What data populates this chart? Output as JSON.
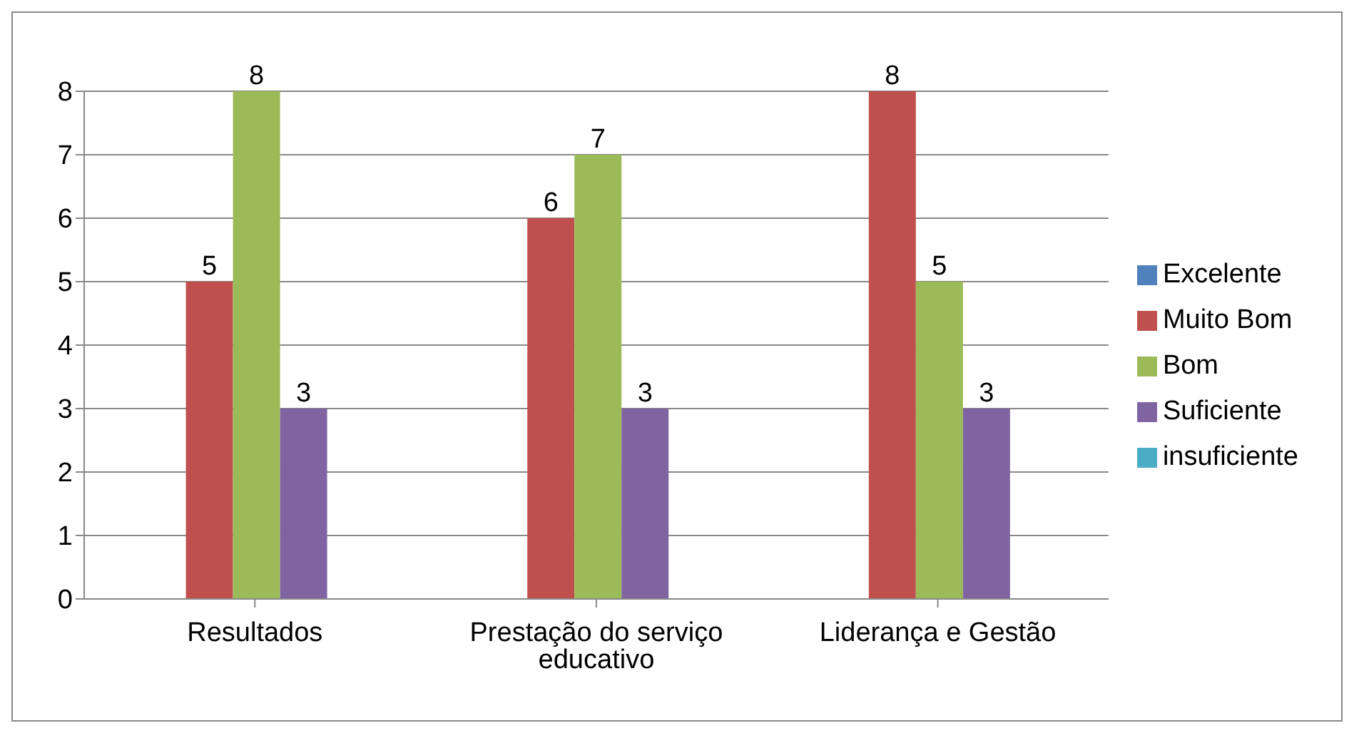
{
  "chart_data": {
    "type": "bar",
    "categories": [
      "Resultados",
      "Prestação do serviço educativo",
      "Liderança e Gestão"
    ],
    "series": [
      {
        "name": "Excelente",
        "color": "#4f81bd",
        "values": [
          null,
          null,
          null
        ]
      },
      {
        "name": "Muito Bom",
        "color": "#c0504d",
        "values": [
          5,
          6,
          8
        ]
      },
      {
        "name": "Bom",
        "color": "#9bbb59",
        "values": [
          8,
          7,
          5
        ]
      },
      {
        "name": "Suficiente",
        "color": "#8064a2",
        "values": [
          3,
          3,
          3
        ]
      },
      {
        "name": "insuficiente",
        "color": "#4bacc6",
        "values": [
          null,
          null,
          null
        ]
      }
    ],
    "ylim": [
      0,
      8
    ],
    "yticks": [
      0,
      1,
      2,
      3,
      4,
      5,
      6,
      7,
      8
    ],
    "grid": "y",
    "legend": "right",
    "data_labels": true
  }
}
